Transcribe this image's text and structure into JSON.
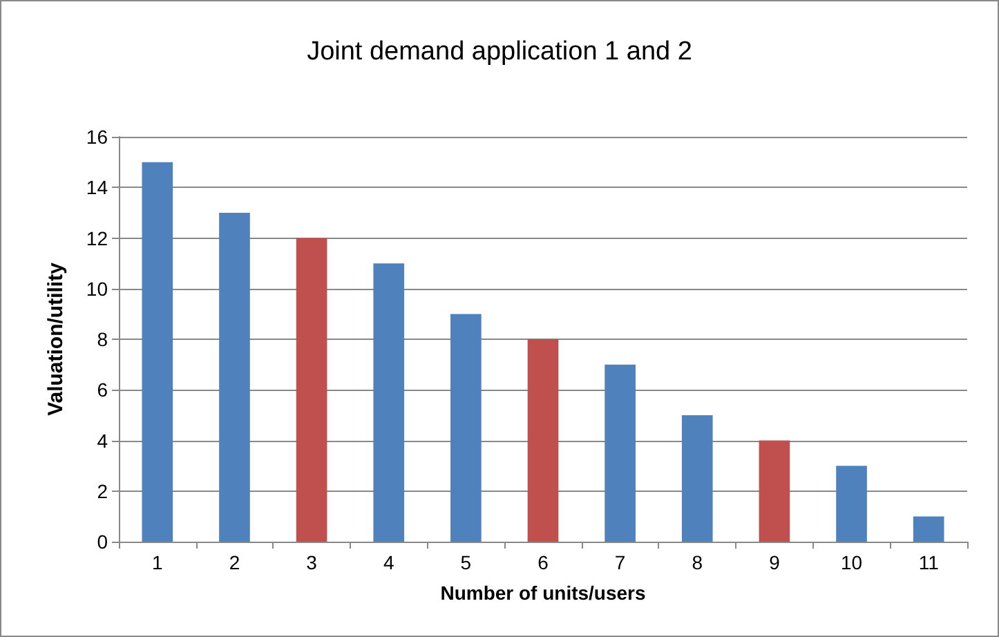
{
  "chart_data": {
    "type": "bar",
    "title": "Joint demand application 1 and 2",
    "xlabel": "Number of units/users",
    "ylabel": "Valuation/utility",
    "categories": [
      "1",
      "2",
      "3",
      "4",
      "5",
      "6",
      "7",
      "8",
      "9",
      "10",
      "11"
    ],
    "values": [
      15,
      13,
      12,
      11,
      9,
      8,
      7,
      5,
      4,
      3,
      1
    ],
    "colors": [
      "#4f81bd",
      "#4f81bd",
      "#c0504d",
      "#4f81bd",
      "#4f81bd",
      "#c0504d",
      "#4f81bd",
      "#4f81bd",
      "#c0504d",
      "#4f81bd",
      "#4f81bd"
    ],
    "ylim": [
      0,
      16
    ],
    "yticks": [
      0,
      2,
      4,
      6,
      8,
      10,
      12,
      14,
      16
    ],
    "grid": "y"
  }
}
